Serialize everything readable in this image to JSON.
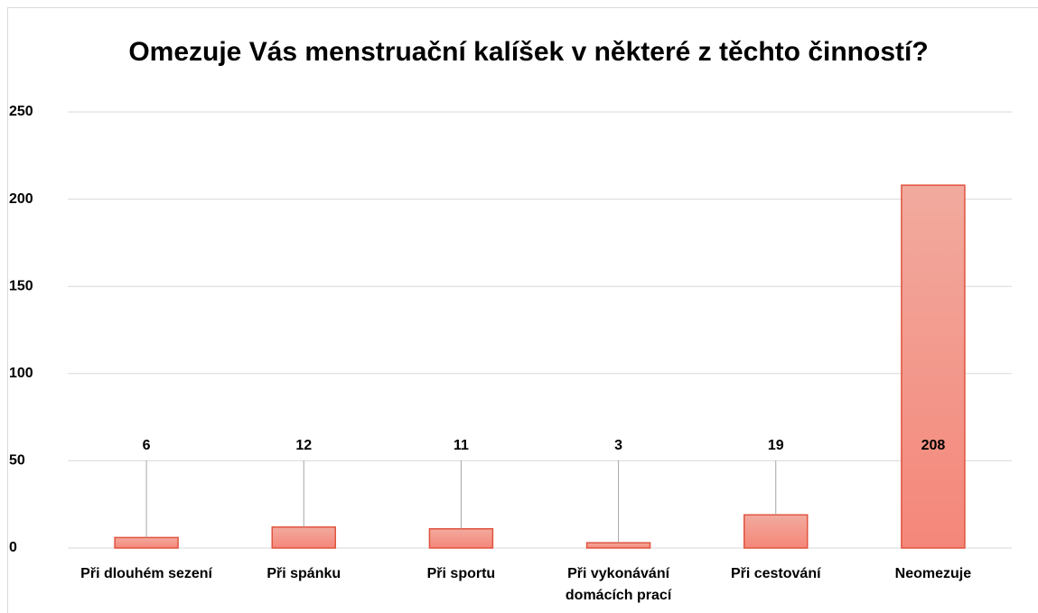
{
  "chart_data": {
    "type": "bar",
    "title": "Omezuje Vás menstruační kalíšek v některé z těchto činností?",
    "categories": [
      "Při dlouhém sezení",
      "Při spánku",
      "Při sportu",
      "Při vykonávání domácích prací",
      "Při cestování",
      "Neomezuje"
    ],
    "values": [
      6,
      12,
      11,
      3,
      19,
      208
    ],
    "color": "#f4877a",
    "ylim": [
      0,
      250
    ],
    "yticks": [
      0,
      50,
      100,
      150,
      200,
      250
    ],
    "grid": true
  }
}
